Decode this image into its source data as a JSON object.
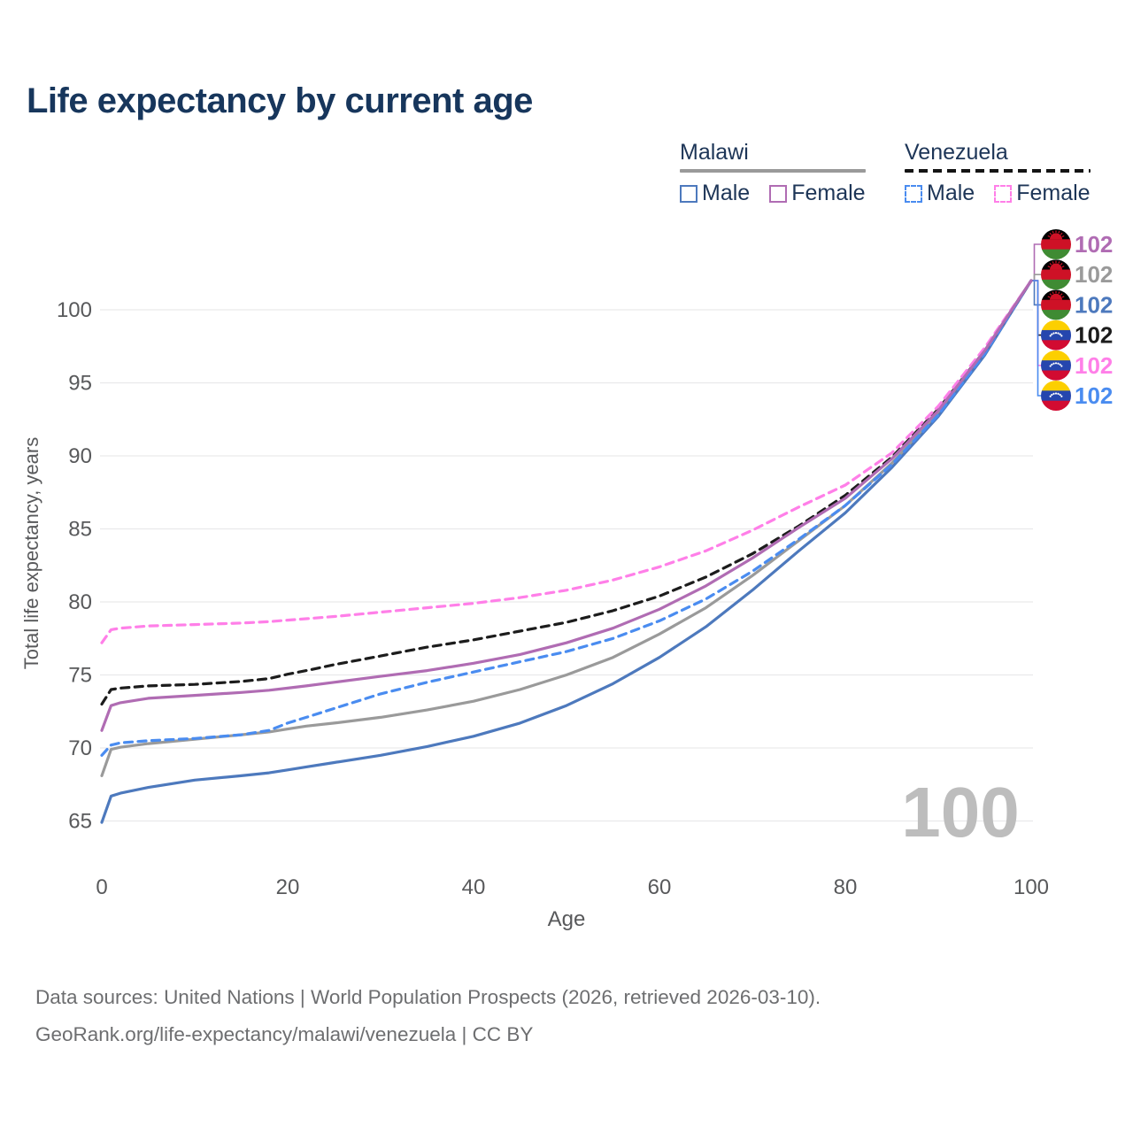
{
  "title": "Life expectancy by current age",
  "legend": {
    "groups": [
      {
        "country": "Malawi",
        "line_style": "solid",
        "underline_color": "#9a9a9a",
        "items": [
          {
            "label": "Male",
            "color": "#4d79bd",
            "dashed": false
          },
          {
            "label": "Female",
            "color": "#b06cb3",
            "dashed": false
          }
        ]
      },
      {
        "country": "Venezuela",
        "line_style": "dashed",
        "underline_color": "#141414",
        "items": [
          {
            "label": "Male",
            "color": "#4a8cf0",
            "dashed": true
          },
          {
            "label": "Female",
            "color": "#ff7fe8",
            "dashed": true
          }
        ]
      }
    ]
  },
  "chart_data": {
    "type": "line",
    "title": "Life expectancy by current age",
    "xlabel": "Age",
    "ylabel": "Total life expectancy, years",
    "x_ticks": [
      0,
      20,
      40,
      60,
      80,
      100
    ],
    "y_ticks": [
      65,
      70,
      75,
      80,
      85,
      90,
      95,
      100
    ],
    "xlim": [
      0,
      100
    ],
    "ylim": [
      63.5,
      103
    ],
    "grid": true,
    "legend_position": "top-right",
    "age_counter_watermark": "100",
    "x": [
      0,
      1,
      2,
      5,
      10,
      15,
      18,
      20,
      22,
      25,
      30,
      35,
      40,
      45,
      50,
      55,
      60,
      65,
      70,
      75,
      80,
      85,
      90,
      95,
      100
    ],
    "series": [
      {
        "name": "Malawi Both sexes",
        "country": "Malawi",
        "sex": "both",
        "color": "#9a9a9a",
        "dashed": false,
        "values": [
          68.1,
          69.9,
          70.05,
          70.3,
          70.6,
          70.9,
          71.1,
          71.3,
          71.5,
          71.7,
          72.1,
          72.6,
          73.2,
          74.0,
          75.0,
          76.2,
          77.8,
          79.6,
          81.8,
          84.2,
          86.6,
          89.5,
          92.9,
          97.0,
          102
        ]
      },
      {
        "name": "Malawi Male",
        "country": "Malawi",
        "sex": "male",
        "color": "#4d79bd",
        "dashed": false,
        "values": [
          64.9,
          66.7,
          66.9,
          67.3,
          67.8,
          68.1,
          68.3,
          68.5,
          68.7,
          69.0,
          69.5,
          70.1,
          70.8,
          71.7,
          72.9,
          74.4,
          76.2,
          78.3,
          80.8,
          83.5,
          86.1,
          89.2,
          92.7,
          96.9,
          102
        ]
      },
      {
        "name": "Venezuela Male",
        "country": "Venezuela",
        "sex": "male",
        "color": "#4a8cf0",
        "dashed": true,
        "values": [
          69.5,
          70.2,
          70.35,
          70.5,
          70.65,
          70.9,
          71.2,
          71.7,
          72.1,
          72.7,
          73.7,
          74.5,
          75.2,
          75.9,
          76.6,
          77.5,
          78.7,
          80.2,
          82.1,
          84.3,
          86.6,
          89.4,
          92.8,
          97.0,
          102
        ]
      },
      {
        "name": "Venezuela Both sexes",
        "country": "Venezuela",
        "sex": "both",
        "color": "#1c1c1c",
        "dashed": true,
        "values": [
          73.0,
          74.0,
          74.1,
          74.25,
          74.35,
          74.55,
          74.75,
          75.05,
          75.3,
          75.7,
          76.3,
          76.9,
          77.4,
          78.0,
          78.6,
          79.4,
          80.4,
          81.7,
          83.3,
          85.2,
          87.3,
          89.9,
          93.2,
          97.2,
          102
        ]
      },
      {
        "name": "Venezuela Female",
        "country": "Venezuela",
        "sex": "female",
        "color": "#ff7fe8",
        "dashed": true,
        "values": [
          77.2,
          78.1,
          78.2,
          78.35,
          78.45,
          78.55,
          78.65,
          78.75,
          78.85,
          79.0,
          79.3,
          79.6,
          79.9,
          80.3,
          80.8,
          81.5,
          82.4,
          83.5,
          84.9,
          86.5,
          88.0,
          90.2,
          93.4,
          97.4,
          102
        ]
      },
      {
        "name": "Malawi Female",
        "country": "Malawi",
        "sex": "female",
        "color": "#b06cb3",
        "dashed": false,
        "values": [
          71.2,
          72.9,
          73.1,
          73.4,
          73.6,
          73.8,
          73.95,
          74.1,
          74.25,
          74.5,
          74.9,
          75.3,
          75.8,
          76.4,
          77.2,
          78.2,
          79.5,
          81.1,
          83.0,
          85.1,
          87.1,
          89.8,
          93.1,
          97.2,
          102
        ]
      }
    ],
    "end_labels": [
      {
        "country": "Malawi",
        "series": "Malawi Female",
        "flag": "malawi",
        "value": "102",
        "color": "#b06cb3"
      },
      {
        "country": "Malawi",
        "series": "Malawi Both sexes",
        "flag": "malawi",
        "value": "102",
        "color": "#9a9a9a"
      },
      {
        "country": "Malawi",
        "series": "Malawi Male",
        "flag": "malawi",
        "value": "102",
        "color": "#4d79bd"
      },
      {
        "country": "Venezuela",
        "series": "Venezuela Both sexes",
        "flag": "venezuela",
        "value": "102",
        "color": "#1c1c1c"
      },
      {
        "country": "Venezuela",
        "series": "Venezuela Female",
        "flag": "venezuela",
        "value": "102",
        "color": "#ff7fe8"
      },
      {
        "country": "Venezuela",
        "series": "Venezuela Male",
        "flag": "venezuela",
        "value": "102",
        "color": "#4a8cf0"
      }
    ],
    "flag_colors": {
      "malawi": {
        "stripes": [
          "#000000",
          "#ce1126",
          "#3f8b33"
        ],
        "sun": "#ce1126"
      },
      "venezuela": {
        "stripes": [
          "#fccf00",
          "#2546ae",
          "#d20b31"
        ],
        "stars": "#ffffff"
      }
    }
  },
  "footer": {
    "line1": "Data sources: United Nations | World Population Prospects (2026, retrieved 2026-03-10).",
    "line2": "GeoRank.org/life-expectancy/malawi/venezuela | CC BY"
  }
}
